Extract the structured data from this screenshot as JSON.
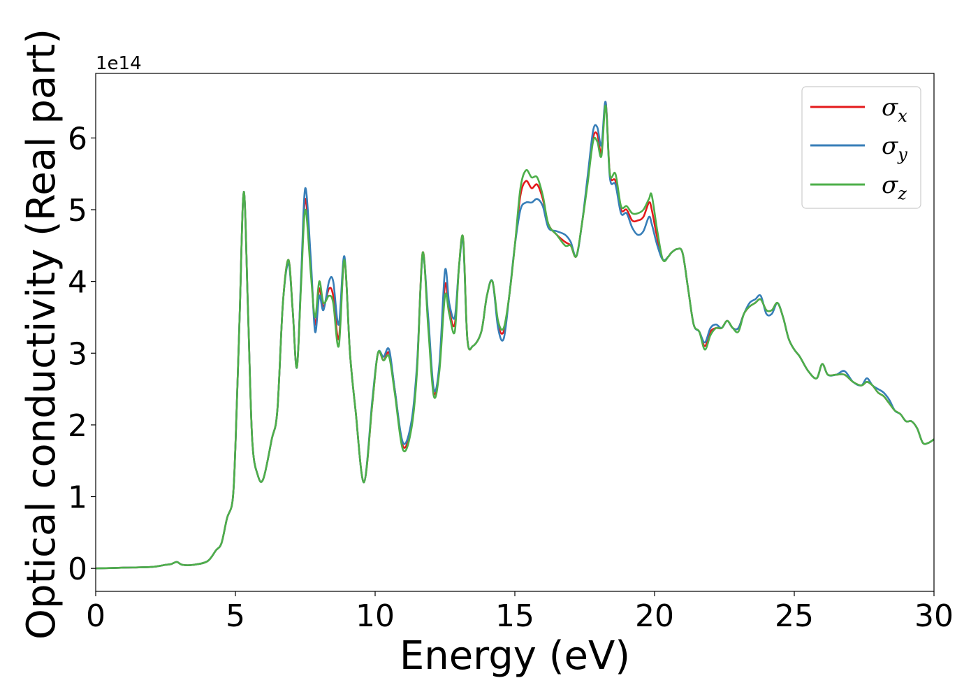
{
  "chart_data": {
    "type": "line",
    "title": "",
    "xlabel": "Energy (eV)",
    "ylabel": "Optical conductivity (Real part)",
    "y_offset_text": "1e14",
    "xlim": [
      0,
      30
    ],
    "ylim": [
      -0.32,
      6.9
    ],
    "x_ticks": [
      0,
      5,
      10,
      15,
      20,
      25,
      30
    ],
    "y_ticks": [
      0,
      1,
      2,
      3,
      4,
      5,
      6
    ],
    "grid": false,
    "legend_position": "top-right",
    "colors": {
      "sigma_x": "#e41a1c",
      "sigma_y": "#377eb8",
      "sigma_z": "#4daf4a"
    },
    "x": [
      0,
      1,
      2,
      2.5,
      2.7,
      2.9,
      3.1,
      3.5,
      4.0,
      4.3,
      4.5,
      4.7,
      4.9,
      5.0,
      5.15,
      5.3,
      5.45,
      5.6,
      5.8,
      6.0,
      6.3,
      6.5,
      6.7,
      6.9,
      7.05,
      7.2,
      7.35,
      7.5,
      7.7,
      7.85,
      8.0,
      8.15,
      8.35,
      8.5,
      8.7,
      8.9,
      9.1,
      9.3,
      9.6,
      9.9,
      10.1,
      10.3,
      10.5,
      10.7,
      11.0,
      11.3,
      11.5,
      11.7,
      11.9,
      12.1,
      12.3,
      12.5,
      12.65,
      12.85,
      13.0,
      13.15,
      13.3,
      13.5,
      13.8,
      14.0,
      14.2,
      14.4,
      14.6,
      14.8,
      15.0,
      15.2,
      15.4,
      15.6,
      15.8,
      16.0,
      16.2,
      16.5,
      16.8,
      17.0,
      17.2,
      17.4,
      17.6,
      17.8,
      17.95,
      18.1,
      18.25,
      18.4,
      18.6,
      18.8,
      19.0,
      19.2,
      19.4,
      19.6,
      19.8,
      19.9,
      20.1,
      20.3,
      20.5,
      20.6,
      20.8,
      21.0,
      21.2,
      21.4,
      21.6,
      21.8,
      22.0,
      22.2,
      22.4,
      22.6,
      22.8,
      23.0,
      23.2,
      23.4,
      23.6,
      23.8,
      24.0,
      24.2,
      24.4,
      24.6,
      24.8,
      25.0,
      25.2,
      25.5,
      25.8,
      26.0,
      26.2,
      26.5,
      26.8,
      27.1,
      27.4,
      27.6,
      27.8,
      28.0,
      28.2,
      28.4,
      28.6,
      28.8,
      29.0,
      29.2,
      29.4,
      29.6,
      29.8,
      30.0
    ],
    "series": [
      {
        "name": "σx",
        "values": [
          0.0,
          0.01,
          0.02,
          0.05,
          0.06,
          0.09,
          0.05,
          0.05,
          0.1,
          0.25,
          0.35,
          0.7,
          0.95,
          1.7,
          3.5,
          5.25,
          3.6,
          1.8,
          1.3,
          1.25,
          1.8,
          2.2,
          3.7,
          4.3,
          3.6,
          2.8,
          4.0,
          5.15,
          4.2,
          3.4,
          3.9,
          3.65,
          3.9,
          3.8,
          3.2,
          4.3,
          3.0,
          2.2,
          1.2,
          2.3,
          3.0,
          2.9,
          3.0,
          2.5,
          1.7,
          2.0,
          2.8,
          4.4,
          3.4,
          2.45,
          2.8,
          3.95,
          3.6,
          3.4,
          4.2,
          4.6,
          3.2,
          3.1,
          3.3,
          3.8,
          4.0,
          3.4,
          3.3,
          3.8,
          4.5,
          5.2,
          5.4,
          5.3,
          5.35,
          5.15,
          4.8,
          4.65,
          4.55,
          4.5,
          4.35,
          4.8,
          5.4,
          6.0,
          6.05,
          5.8,
          6.5,
          5.5,
          5.4,
          5.0,
          5.0,
          4.85,
          4.85,
          4.9,
          5.1,
          5.0,
          4.6,
          4.3,
          4.35,
          4.4,
          4.45,
          4.4,
          3.9,
          3.4,
          3.3,
          3.1,
          3.3,
          3.35,
          3.35,
          3.45,
          3.35,
          3.35,
          3.55,
          3.65,
          3.7,
          3.75,
          3.6,
          3.6,
          3.7,
          3.5,
          3.2,
          3.05,
          2.95,
          2.75,
          2.65,
          2.85,
          2.7,
          2.7,
          2.7,
          2.6,
          2.55,
          2.6,
          2.55,
          2.45,
          2.4,
          2.3,
          2.2,
          2.15,
          2.05,
          2.05,
          1.95,
          1.75,
          1.75,
          1.8
        ]
      },
      {
        "name": "σy",
        "values": [
          0.0,
          0.01,
          0.02,
          0.05,
          0.06,
          0.09,
          0.05,
          0.05,
          0.1,
          0.25,
          0.35,
          0.7,
          0.95,
          1.7,
          3.5,
          5.25,
          3.6,
          1.8,
          1.3,
          1.25,
          1.8,
          2.2,
          3.7,
          4.25,
          3.6,
          2.8,
          4.05,
          5.3,
          4.3,
          3.3,
          3.8,
          3.6,
          4.0,
          4.0,
          3.4,
          4.35,
          3.0,
          2.2,
          1.2,
          2.35,
          3.0,
          2.95,
          3.05,
          2.5,
          1.75,
          2.05,
          2.85,
          4.35,
          3.5,
          2.5,
          2.85,
          4.15,
          3.7,
          3.5,
          4.2,
          4.55,
          3.2,
          3.1,
          3.3,
          3.8,
          4.0,
          3.35,
          3.2,
          3.8,
          4.5,
          5.0,
          5.1,
          5.1,
          5.15,
          5.05,
          4.75,
          4.7,
          4.65,
          4.55,
          4.35,
          4.8,
          5.45,
          6.1,
          6.15,
          5.9,
          6.5,
          5.45,
          5.35,
          4.95,
          4.95,
          4.75,
          4.65,
          4.7,
          4.9,
          4.8,
          4.5,
          4.3,
          4.35,
          4.4,
          4.45,
          4.4,
          3.9,
          3.4,
          3.3,
          3.15,
          3.35,
          3.4,
          3.35,
          3.45,
          3.35,
          3.35,
          3.55,
          3.7,
          3.75,
          3.8,
          3.55,
          3.55,
          3.7,
          3.5,
          3.2,
          3.05,
          2.95,
          2.75,
          2.65,
          2.85,
          2.7,
          2.7,
          2.75,
          2.6,
          2.55,
          2.65,
          2.55,
          2.5,
          2.45,
          2.35,
          2.2,
          2.15,
          2.05,
          2.05,
          1.95,
          1.75,
          1.75,
          1.8
        ]
      },
      {
        "name": "σz",
        "values": [
          0.0,
          0.01,
          0.02,
          0.05,
          0.06,
          0.09,
          0.05,
          0.05,
          0.1,
          0.25,
          0.35,
          0.7,
          0.95,
          1.7,
          3.5,
          5.25,
          3.6,
          1.8,
          1.3,
          1.25,
          1.8,
          2.2,
          3.7,
          4.3,
          3.6,
          2.8,
          3.95,
          5.0,
          4.1,
          3.5,
          4.0,
          3.7,
          3.8,
          3.7,
          3.1,
          4.3,
          3.0,
          2.2,
          1.2,
          2.3,
          3.0,
          2.9,
          2.95,
          2.45,
          1.65,
          1.95,
          2.75,
          4.4,
          3.35,
          2.4,
          2.75,
          3.8,
          3.55,
          3.3,
          4.2,
          4.6,
          3.2,
          3.1,
          3.3,
          3.8,
          4.0,
          3.45,
          3.35,
          3.8,
          4.5,
          5.3,
          5.55,
          5.45,
          5.45,
          5.2,
          4.8,
          4.65,
          4.5,
          4.5,
          4.35,
          4.8,
          5.35,
          5.95,
          5.95,
          5.75,
          6.45,
          5.5,
          5.5,
          5.05,
          5.05,
          4.95,
          4.95,
          5.0,
          5.15,
          5.2,
          4.7,
          4.3,
          4.35,
          4.4,
          4.45,
          4.4,
          3.9,
          3.4,
          3.3,
          3.05,
          3.25,
          3.35,
          3.35,
          3.45,
          3.35,
          3.3,
          3.55,
          3.65,
          3.7,
          3.75,
          3.6,
          3.6,
          3.7,
          3.5,
          3.2,
          3.05,
          2.95,
          2.75,
          2.65,
          2.85,
          2.7,
          2.7,
          2.7,
          2.6,
          2.55,
          2.6,
          2.55,
          2.45,
          2.4,
          2.3,
          2.2,
          2.15,
          2.05,
          2.05,
          1.95,
          1.75,
          1.75,
          1.8
        ]
      }
    ]
  },
  "legend": {
    "items": [
      {
        "symbol": "σ",
        "sub": "x"
      },
      {
        "symbol": "σ",
        "sub": "y"
      },
      {
        "symbol": "σ",
        "sub": "z"
      }
    ]
  }
}
